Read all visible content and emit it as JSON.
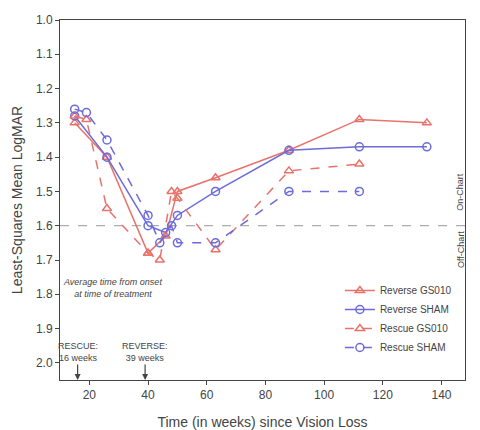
{
  "chart_data": {
    "type": "line",
    "xlabel": "Time (in weeks) since Vision Loss",
    "ylabel": "Least-Squares Mean LogMAR",
    "series": [
      {
        "name": "Reverse GS010",
        "color": "#E8736B",
        "line_style": "solid",
        "marker": "triangle-up",
        "x": [
          15,
          26,
          40,
          46,
          50,
          63,
          88,
          112,
          135
        ],
        "values": [
          1.3,
          1.4,
          1.68,
          1.63,
          1.5,
          1.46,
          1.38,
          1.29,
          1.3
        ]
      },
      {
        "name": "Reverse SHAM",
        "color": "#6B6BDB",
        "line_style": "solid",
        "marker": "circle",
        "x": [
          15,
          26,
          40,
          46,
          50,
          63,
          88,
          112,
          135
        ],
        "values": [
          1.28,
          1.4,
          1.6,
          1.62,
          1.57,
          1.5,
          1.38,
          1.37,
          1.37
        ]
      },
      {
        "name": "Rescue GS010",
        "color": "#E8736B",
        "line_style": "dashed",
        "marker": "triangle-up",
        "x": [
          15,
          19,
          26,
          40,
          44,
          48,
          50,
          63,
          88,
          112
        ],
        "values": [
          1.28,
          1.29,
          1.55,
          1.68,
          1.7,
          1.5,
          1.52,
          1.67,
          1.44,
          1.42
        ]
      },
      {
        "name": "Rescue SHAM",
        "color": "#6B6BDB",
        "line_style": "dashed",
        "marker": "circle",
        "x": [
          15,
          19,
          26,
          40,
          44,
          48,
          50,
          63,
          88,
          112
        ],
        "values": [
          1.26,
          1.27,
          1.35,
          1.57,
          1.65,
          1.6,
          1.65,
          1.65,
          1.5,
          1.5
        ]
      }
    ],
    "xlim": [
      10,
      148
    ],
    "xticks": [
      20,
      40,
      60,
      80,
      100,
      120,
      140
    ],
    "ylim": [
      2.05,
      1.0
    ],
    "yticks": [
      {
        "value": 1.0,
        "label": "1.0"
      },
      1.1,
      1.2,
      1.3,
      1.4,
      1.5,
      1.6,
      1.7,
      1.8,
      1.9,
      {
        "value": 2.0,
        "label": "2.0"
      }
    ],
    "grid": false,
    "legend": "lower right",
    "hline": {
      "value": 1.6,
      "color": "#999999",
      "line_style": "dashed"
    },
    "annotations": [
      {
        "text": "Average time from onset\nat time of treatment",
        "x": 28,
        "y": 1.82
      }
    ],
    "arrows": [
      {
        "text": "RESCUE:\n16 weeks",
        "x": 16
      },
      {
        "text": "REVERSE:\n39 weeks",
        "x": 39
      }
    ],
    "side_labels": [
      {
        "text": "On-Chart",
        "x": 144,
        "y": 1.5
      },
      {
        "text": "Off-Chart",
        "x": 144,
        "y": 1.67
      }
    ]
  }
}
